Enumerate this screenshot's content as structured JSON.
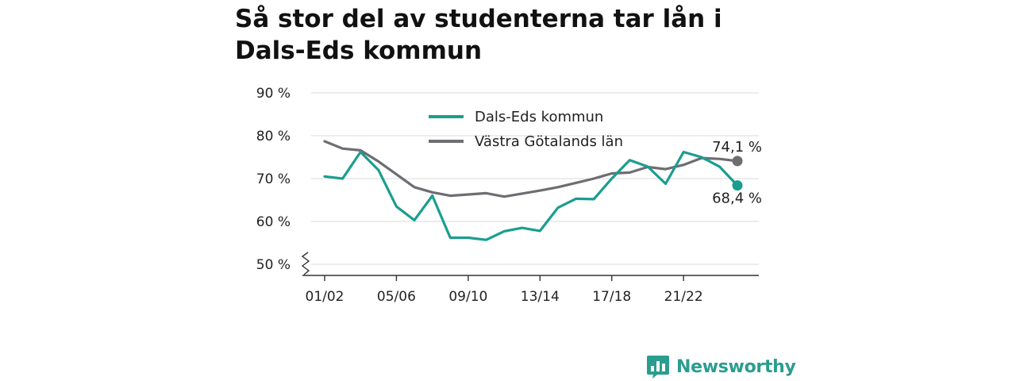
{
  "chart_data": {
    "type": "line",
    "title": "Så stor del av studenterna tar lån i Dals-Eds kommun",
    "y_ticks": [
      "90 %",
      "80 %",
      "70 %",
      "60 %",
      "50 %"
    ],
    "y_tick_values": [
      90,
      80,
      70,
      60,
      50
    ],
    "ylim": [
      50,
      90
    ],
    "y_axis_break": true,
    "x_ticks": [
      "01/02",
      "05/06",
      "09/10",
      "13/14",
      "17/18",
      "21/22"
    ],
    "x": [
      "01/02",
      "02/03",
      "03/04",
      "04/05",
      "05/06",
      "06/07",
      "07/08",
      "08/09",
      "09/10",
      "10/11",
      "11/12",
      "12/13",
      "13/14",
      "14/15",
      "15/16",
      "16/17",
      "17/18",
      "18/19",
      "19/20",
      "20/21",
      "21/22",
      "22/23",
      "23/24",
      "24/25"
    ],
    "grid": true,
    "legend_position": "top-center",
    "series": [
      {
        "name": "Dals-Eds kommun",
        "color": "#1a9e8f",
        "values": [
          70.5,
          70.0,
          76.2,
          72.0,
          63.5,
          60.3,
          66.0,
          56.2,
          56.2,
          55.7,
          57.7,
          58.5,
          57.8,
          63.2,
          65.3,
          65.2,
          70.0,
          74.3,
          72.8,
          68.8,
          76.2,
          75.0,
          72.8,
          68.4
        ],
        "end_label": "68,4 %"
      },
      {
        "name": "Västra Götalands län",
        "color": "#6e6d72",
        "values": [
          78.7,
          77.0,
          76.6,
          74.0,
          71.0,
          68.0,
          66.8,
          66.0,
          66.3,
          66.6,
          65.8,
          66.5,
          67.2,
          68.0,
          69.0,
          70.0,
          71.2,
          71.4,
          72.7,
          72.2,
          73.2,
          74.8,
          74.6,
          74.1
        ],
        "end_label": "74,1 %"
      }
    ]
  },
  "brand": {
    "name": "Newsworthy",
    "icon": "bar-chart-speech-icon",
    "color": "#2a9d8f"
  }
}
